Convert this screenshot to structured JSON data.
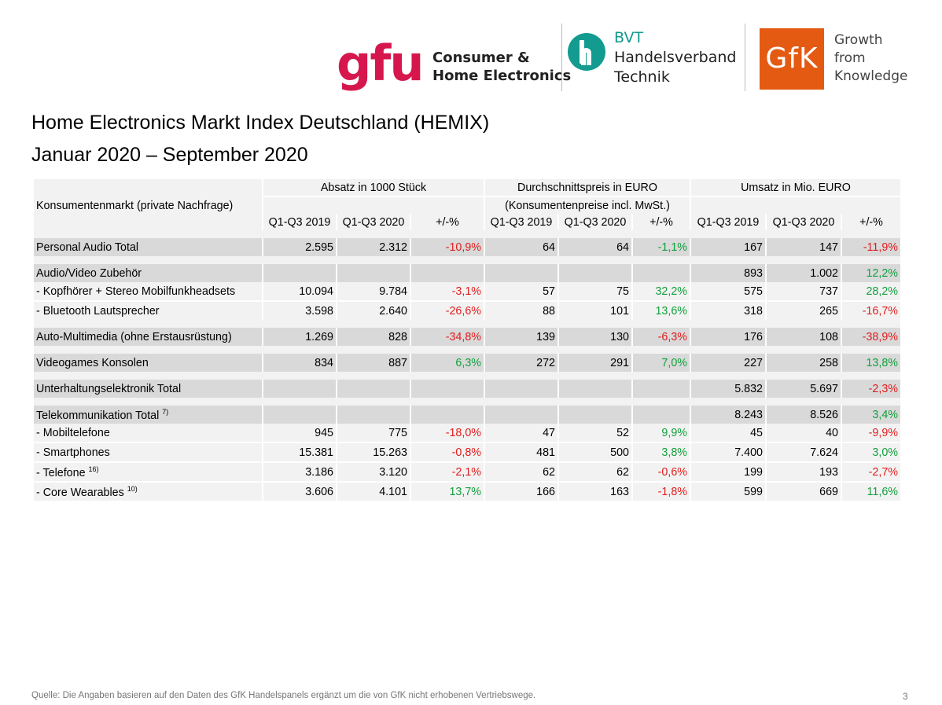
{
  "logos": {
    "gfu_text": "gfu",
    "gfu_sub": [
      "Consumer &",
      "Home Electronics"
    ],
    "bvt_text": [
      "BVT",
      "Handelsverband",
      "Technik"
    ],
    "gfk_text": "GfK",
    "gfk_tag": [
      "Growth",
      "from",
      "Knowledge"
    ],
    "colors": {
      "gfu": "#d6174e",
      "bvt": "#139b8f",
      "gfk": "#e55a12"
    }
  },
  "title": "Home Electronics Markt Index Deutschland (HEMIX)",
  "subtitle": "Januar 2020 – September 2020",
  "table": {
    "market_label": "Konsumentenmarkt (private Nachfrage)",
    "groups": {
      "absatz": "Absatz in 1000 Stück",
      "preis": "Durchschnittspreis in EURO",
      "preis_note": "(Konsumentenpreise incl. MwSt.)",
      "umsatz": "Umsatz in Mio. EURO"
    },
    "cols": {
      "y2019": "Q1-Q3 2019",
      "y2020": "Q1-Q3 2020",
      "change": "+/-%"
    },
    "rows": {
      "personal_audio": {
        "label": "Personal Audio Total",
        "a19": "2.595",
        "a20": "2.312",
        "ac": "-10,9%",
        "p19": "64",
        "p20": "64",
        "pc": "-1,1%",
        "u19": "167",
        "u20": "147",
        "uc": "-11,9%"
      },
      "av_zubehoer": {
        "label": "Audio/Video Zubehör",
        "u19": "893",
        "u20": "1.002",
        "uc": "12,2%"
      },
      "kopfhoerer": {
        "label": "- Kopfhörer + Stereo Mobilfunkheadsets",
        "a19": "10.094",
        "a20": "9.784",
        "ac": "-3,1%",
        "p19": "57",
        "p20": "75",
        "pc": "32,2%",
        "u19": "575",
        "u20": "737",
        "uc": "28,2%"
      },
      "bluetooth": {
        "label": "- Bluetooth Lautsprecher",
        "a19": "3.598",
        "a20": "2.640",
        "ac": "-26,6%",
        "p19": "88",
        "p20": "101",
        "pc": "13,6%",
        "u19": "318",
        "u20": "265",
        "uc": "-16,7%"
      },
      "auto_mm": {
        "label": "Auto-Multimedia (ohne Erstausrüstung)",
        "a19": "1.269",
        "a20": "828",
        "ac": "-34,8%",
        "p19": "139",
        "p20": "130",
        "pc": "-6,3%",
        "u19": "176",
        "u20": "108",
        "uc": "-38,9%"
      },
      "videogames": {
        "label": "Videogames Konsolen",
        "a19": "834",
        "a20": "887",
        "ac": "6,3%",
        "p19": "272",
        "p20": "291",
        "pc": "7,0%",
        "u19": "227",
        "u20": "258",
        "uc": "13,8%"
      },
      "ue_total": {
        "label": "Unterhaltungselektronik Total",
        "u19": "5.832",
        "u20": "5.697",
        "uc": "-2,3%"
      },
      "tk_total": {
        "label": "Telekommunikation Total",
        "sup": "7)",
        "u19": "8.243",
        "u20": "8.526",
        "uc": "3,4%"
      },
      "mobil": {
        "label": "- Mobiltelefone",
        "a19": "945",
        "a20": "775",
        "ac": "-18,0%",
        "p19": "47",
        "p20": "52",
        "pc": "9,9%",
        "u19": "45",
        "u20": "40",
        "uc": "-9,9%"
      },
      "smart": {
        "label": "- Smartphones",
        "a19": "15.381",
        "a20": "15.263",
        "ac": "-0,8%",
        "p19": "481",
        "p20": "500",
        "pc": "3,8%",
        "u19": "7.400",
        "u20": "7.624",
        "uc": "3,0%"
      },
      "telefone": {
        "label": "- Telefone",
        "sup": "16)",
        "a19": "3.186",
        "a20": "3.120",
        "ac": "-2,1%",
        "p19": "62",
        "p20": "62",
        "pc": "-0,6%",
        "u19": "199",
        "u20": "193",
        "uc": "-2,7%"
      },
      "wearables": {
        "label": "- Core Wearables",
        "sup": "10)",
        "a19": "3.606",
        "a20": "4.101",
        "ac": "13,7%",
        "p19": "166",
        "p20": "163",
        "pc": "-1,8%",
        "u19": "599",
        "u20": "669",
        "uc": "11,6%"
      }
    }
  },
  "footnote": "Quelle: Die Angaben basieren auf den Daten des GfK Handelspanels ergänzt um die von GfK nicht erhobenen Vertriebswege.",
  "page_number": "3"
}
